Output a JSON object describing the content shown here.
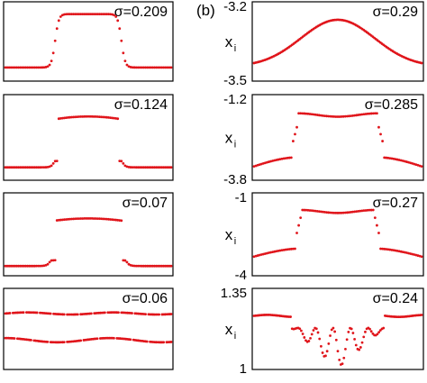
{
  "figure": {
    "panel_label_b": "(b)",
    "ylabel": "x",
    "ylabel_sub": "i"
  },
  "chart_data": [
    {
      "type": "scatter",
      "panel": "a1",
      "sigma_label": "σ=0.209",
      "ylim": [
        0,
        1
      ],
      "yticks": [],
      "profile": "plateau",
      "params": {
        "low": 0.12,
        "high": 0.9,
        "w": 0.2,
        "s": 0.045
      }
    },
    {
      "type": "scatter",
      "panel": "a2",
      "sigma_label": "σ=0.124",
      "ylim": [
        0,
        1
      ],
      "yticks": [],
      "profile": "split_plateau",
      "params": {
        "low": 0.1,
        "high": 0.78,
        "w": 0.18,
        "s": 0.05,
        "gap": [
          0.13,
          0.18
        ]
      }
    },
    {
      "type": "scatter",
      "panel": "a3",
      "sigma_label": "σ=0.07",
      "ylim": [
        0,
        1
      ],
      "yticks": [],
      "profile": "split_plateau",
      "params": {
        "low": 0.06,
        "high": 0.72,
        "w": 0.2,
        "s": 0.055,
        "gap": [
          0.09,
          0.24
        ]
      }
    },
    {
      "type": "scatter",
      "panel": "a4",
      "sigma_label": "σ=0.06",
      "ylim": [
        0,
        1
      ],
      "yticks": [],
      "profile": "two_bands",
      "params": {
        "upper": 0.72,
        "lower": 0.34
      }
    },
    {
      "type": "line",
      "panel": "b1",
      "sigma_label": "σ=0.29",
      "ylim": [
        -3.5,
        -3.2
      ],
      "yticks": [
        "-3.2",
        "-3.5"
      ],
      "profile": "gauss",
      "params": {
        "low": -3.46,
        "high": -3.255,
        "sd": 0.22
      }
    },
    {
      "type": "scatter",
      "panel": "b2",
      "sigma_label": "σ=0.285",
      "ylim": [
        -3.8,
        -1.2
      ],
      "yticks": [
        "-1.2",
        "-3.8"
      ],
      "profile": "split_plateau_b",
      "params": {
        "low": -3.2,
        "high": -1.72,
        "w": 0.24,
        "gap": [
          -2.7,
          -2.05
        ]
      }
    },
    {
      "type": "scatter",
      "panel": "b3",
      "sigma_label": "σ=0.27",
      "ylim": [
        -4,
        -1
      ],
      "yticks": [
        "-1",
        "-4"
      ],
      "profile": "split_plateau_b",
      "params": {
        "low": -3.1,
        "high": -1.55,
        "w": 0.22,
        "gap": [
          -2.6,
          -1.75
        ]
      }
    },
    {
      "type": "scatter",
      "panel": "b4",
      "sigma_label": "σ=0.24",
      "ylim": [
        1,
        1.35
      ],
      "yticks": [
        "1.35",
        "1"
      ],
      "profile": "dip",
      "params": {
        "base": 1.24
      }
    }
  ]
}
